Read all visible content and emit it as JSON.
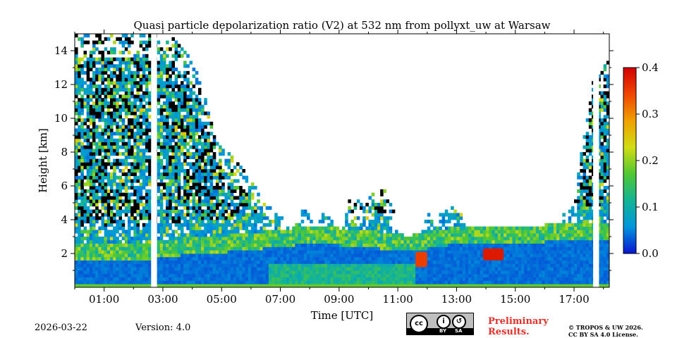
{
  "chart_data": {
    "type": "heatmap",
    "title": "Quasi particle depolarization ratio (V2) at 532 nm from pollyxt_uw at Warsaw",
    "xlabel": "Time [UTC]",
    "ylabel": "Height [km]",
    "xlim": [
      0.0,
      18.2
    ],
    "ylim": [
      0.0,
      15.0
    ],
    "xticks": [
      1,
      3,
      5,
      7,
      9,
      11,
      13,
      15,
      17
    ],
    "xtick_labels": [
      "01:00",
      "03:00",
      "05:00",
      "07:00",
      "09:00",
      "11:00",
      "13:00",
      "15:00",
      "17:00"
    ],
    "yticks": [
      2,
      4,
      6,
      8,
      10,
      12,
      14
    ],
    "ytick_labels": [
      "2",
      "4",
      "6",
      "8",
      "10",
      "12",
      "14"
    ],
    "colorbar": {
      "vmin": 0.0,
      "vmax": 0.4,
      "ticks": [
        0.0,
        0.1,
        0.2,
        0.3,
        0.4
      ],
      "tick_labels": [
        "0.0",
        "0.1",
        "0.2",
        "0.3",
        "0.4"
      ],
      "colors": [
        "#0a14d2",
        "#0096dc",
        "#14b496",
        "#50c832",
        "#d2dc14",
        "#f0a000",
        "#f04600",
        "#d20000"
      ]
    },
    "data_gaps_utc": [
      [
        2.6,
        2.8
      ],
      [
        17.65,
        17.85
      ]
    ],
    "boundary_layer_top_km": {
      "time_utc": [
        0.0,
        2.6,
        2.8,
        4.0,
        6.0,
        7.0,
        8.0,
        9.0,
        10.0,
        10.8,
        11.2,
        11.5,
        12.0,
        13.0,
        14.0,
        15.0,
        16.0,
        17.0,
        17.6,
        18.2
      ],
      "height_km": [
        1.55,
        1.7,
        1.8,
        1.95,
        2.2,
        2.45,
        2.55,
        2.5,
        2.35,
        2.25,
        2.1,
        2.1,
        2.3,
        2.6,
        2.6,
        2.6,
        2.7,
        2.75,
        2.8,
        2.8
      ]
    },
    "cloud_top_km": {
      "time_utc": [
        0.0,
        1.0,
        2.6,
        3.3,
        4.2,
        4.8,
        5.5,
        6.0,
        6.5,
        7.0,
        7.5,
        7.8,
        8.2,
        8.6,
        9.0,
        9.4,
        9.9,
        10.3,
        10.8,
        11.2,
        11.6,
        12.0,
        12.5,
        13.0,
        13.5,
        14.0,
        14.5,
        15.0,
        15.5,
        16.0,
        16.5,
        17.0,
        17.6,
        18.2
      ],
      "height_km": [
        15.0,
        15.0,
        15.0,
        14.8,
        13.0,
        9.0,
        7.5,
        6.5,
        5.0,
        4.2,
        3.6,
        5.0,
        3.5,
        4.8,
        3.2,
        5.5,
        4.8,
        6.5,
        5.0,
        2.4,
        2.6,
        4.3,
        4.6,
        4.8,
        3.4,
        3.2,
        3.0,
        2.9,
        3.5,
        3.0,
        4.2,
        5.2,
        12.0,
        13.5
      ]
    },
    "high_depol_patches": [
      {
        "time_utc": [
          11.6,
          12.0
        ],
        "height_km": [
          1.2,
          2.1
        ],
        "value": 0.35
      },
      {
        "time_utc": [
          13.9,
          14.6
        ],
        "height_km": [
          1.6,
          2.3
        ],
        "value": 0.38
      }
    ]
  },
  "footer": {
    "date": "2026-03-22",
    "version": "Version: 4.0",
    "preliminary": [
      "Preliminary",
      "Results."
    ],
    "copyright": [
      "© TROPOS & UW 2026.",
      "CC BY SA 4.0 License."
    ],
    "license_badge": {
      "cc": "cc",
      "by": "BY",
      "sa": "SA"
    }
  }
}
